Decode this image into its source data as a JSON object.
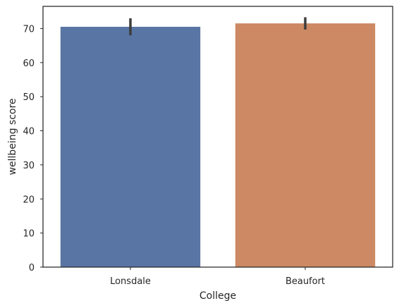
{
  "chart_data": {
    "type": "bar",
    "title": "",
    "xlabel": "College",
    "ylabel": "wellbeing score",
    "categories": [
      "Lonsdale",
      "Beaufort"
    ],
    "values": [
      70.5,
      71.5
    ],
    "error_low": [
      68.0,
      69.7
    ],
    "error_high": [
      73.0,
      73.3
    ],
    "colors": [
      "#5975a4",
      "#cc8963"
    ],
    "ylim": [
      0,
      76.5
    ],
    "yticks": [
      "0",
      "10",
      "20",
      "30",
      "40",
      "50",
      "60",
      "70"
    ],
    "grid": false,
    "legend": "none"
  }
}
